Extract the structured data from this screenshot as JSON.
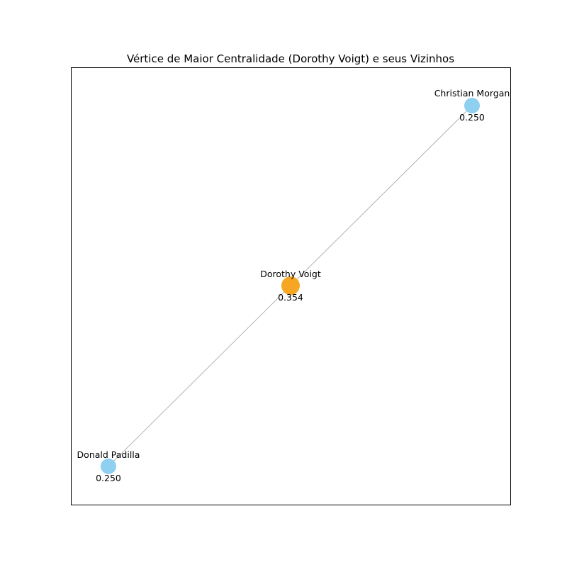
{
  "title": "Vértice de Maior Centralidade (Dorothy Voigt) e seus Vizinhos",
  "colors": {
    "center": "#f5a623",
    "neighbor": "#8fcfef",
    "edge": "#b3b3b3",
    "frame": "#000000"
  },
  "nodes": [
    {
      "id": "dorothy",
      "name": "Dorothy Voigt",
      "value": "0.354",
      "role": "center"
    },
    {
      "id": "christian",
      "name": "Christian Morgan",
      "value": "0.250",
      "role": "neighbor"
    },
    {
      "id": "donald",
      "name": "Donald Padilla",
      "value": "0.250",
      "role": "neighbor"
    }
  ],
  "edges": [
    {
      "from": "dorothy",
      "to": "christian"
    },
    {
      "from": "dorothy",
      "to": "donald"
    }
  ]
}
